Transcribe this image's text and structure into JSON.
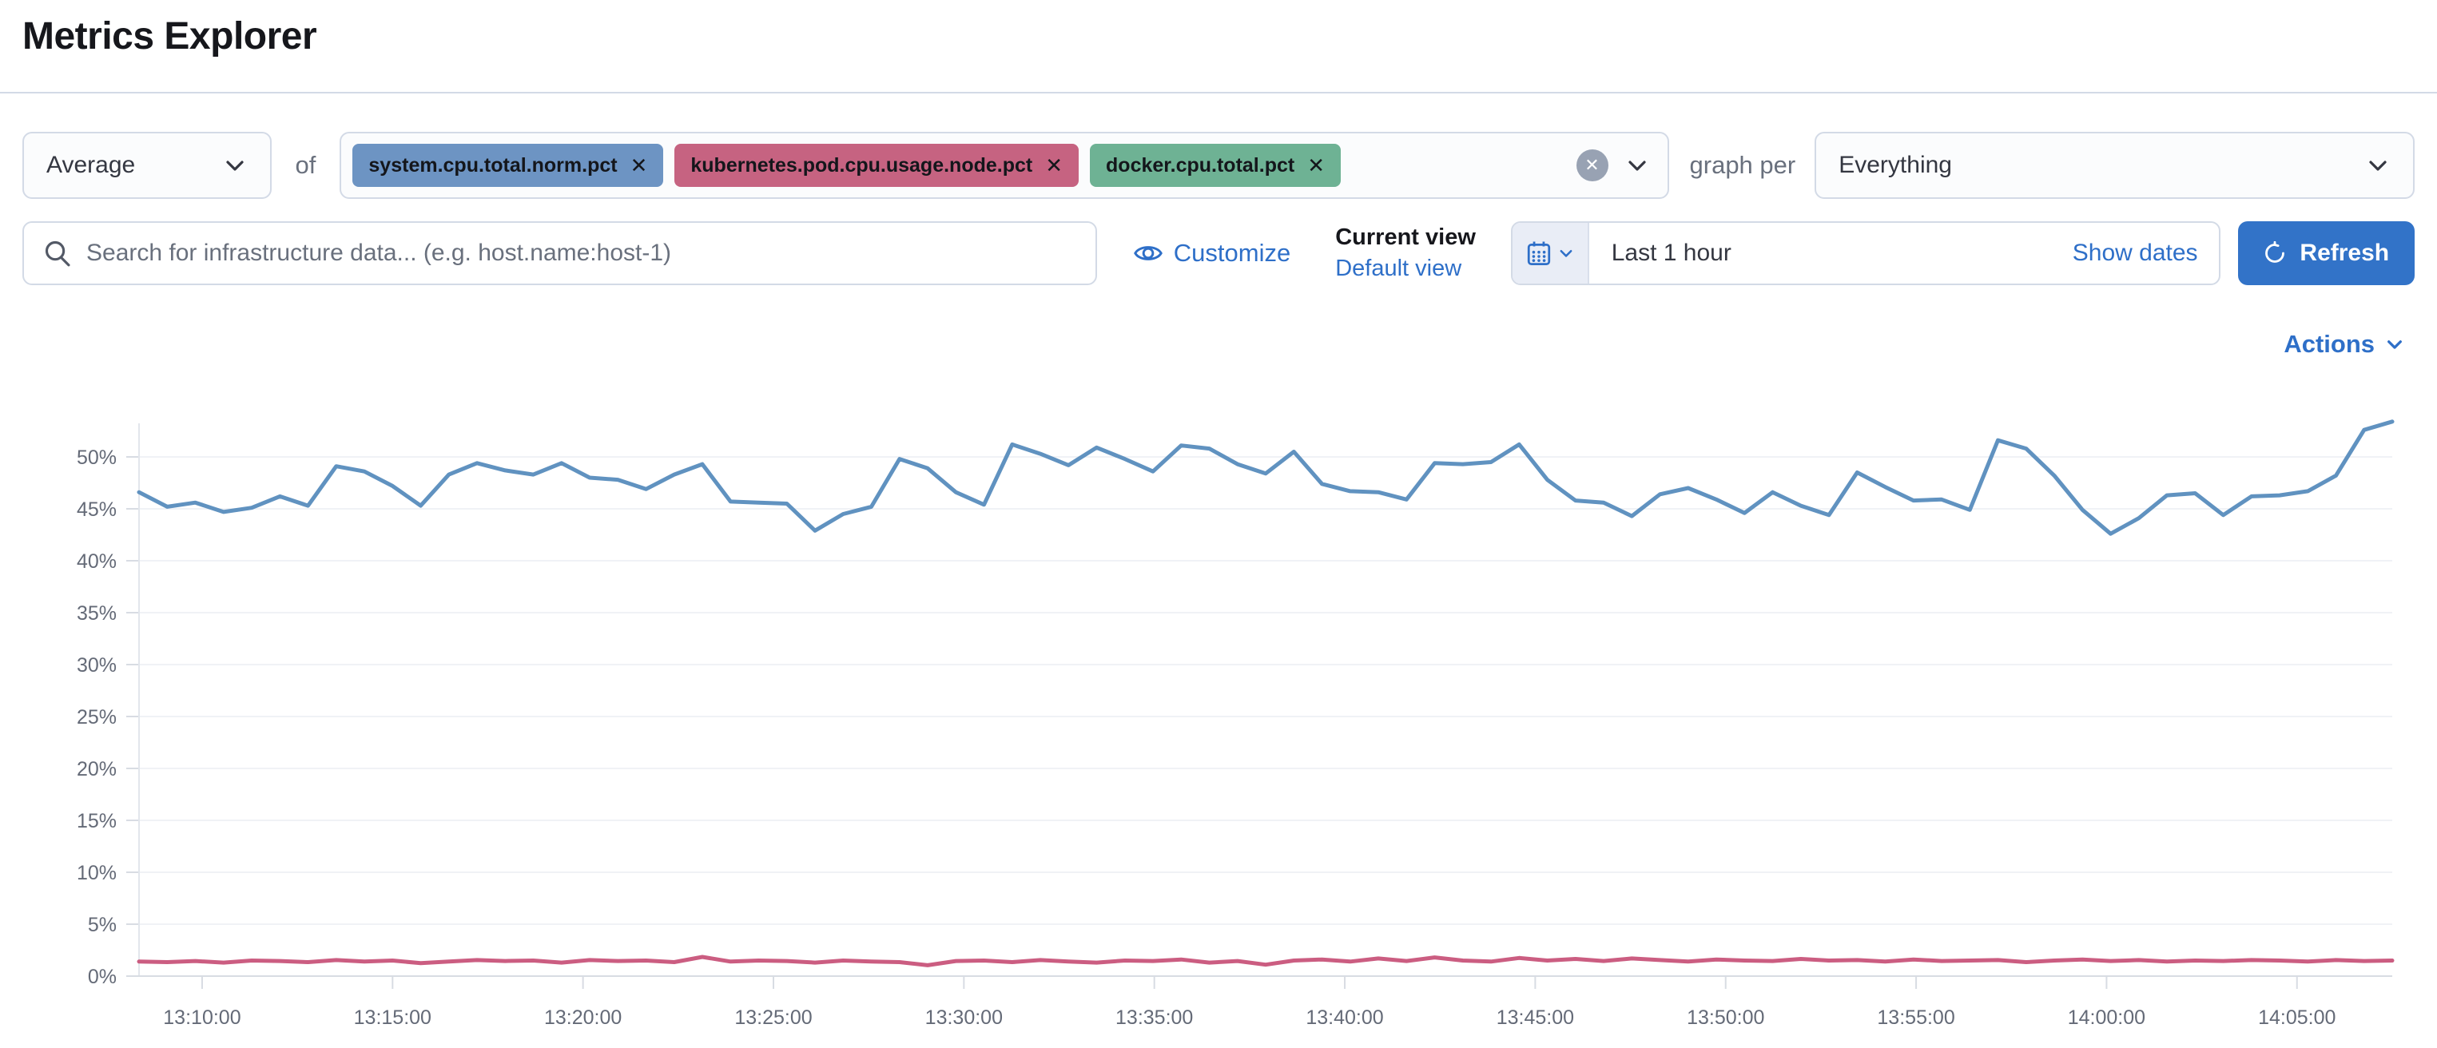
{
  "header": {
    "title": "Metrics Explorer"
  },
  "toolbar": {
    "aggregation": {
      "value": "Average"
    },
    "of_label": "of",
    "metrics": [
      {
        "label": "system.cpu.total.norm.pct",
        "color": "#6D94C3"
      },
      {
        "label": "kubernetes.pod.cpu.usage.node.pct",
        "color": "#C66381"
      },
      {
        "label": "docker.cpu.total.pct",
        "color": "#6EB294"
      }
    ],
    "remove_icon": "✕",
    "clear_icon": "✕",
    "graph_per_label": "graph per",
    "group_by": {
      "value": "Everything"
    }
  },
  "searchbar": {
    "placeholder": "Search for infrastructure data... (e.g. host.name:host-1)"
  },
  "customize": {
    "label": "Customize"
  },
  "view_switcher": {
    "current": "Current view",
    "default_link": "Default view"
  },
  "datepicker": {
    "value": "Last 1 hour",
    "show_dates_label": "Show dates"
  },
  "refresh": {
    "label": "Refresh"
  },
  "actions": {
    "label": "Actions"
  },
  "colors": {
    "accent_link": "#2e6fc8",
    "primary_button": "#3273c8",
    "series_blue": "#6092C0",
    "series_pink": "#CB5D81"
  },
  "chart_data": {
    "type": "line",
    "title": "",
    "xlabel": "",
    "ylabel": "",
    "ylim": [
      0,
      54
    ],
    "grid": true,
    "legend_position": "none",
    "yticks": [
      0,
      5,
      10,
      15,
      20,
      25,
      30,
      35,
      40,
      45,
      50
    ],
    "ytick_suffix": "%",
    "x_tick_labels": [
      "13:10:00",
      "13:15:00",
      "13:20:00",
      "13:25:00",
      "13:30:00",
      "13:35:00",
      "13:40:00",
      "13:45:00",
      "13:50:00",
      "13:55:00",
      "14:00:00",
      "14:05:00"
    ],
    "series": [
      {
        "name": "system.cpu.total.norm.pct",
        "color": "#6092C0",
        "values": [
          46.6,
          45.2,
          45.6,
          44.7,
          45.1,
          46.2,
          45.3,
          49.1,
          48.6,
          47.2,
          45.3,
          48.3,
          49.4,
          48.7,
          48.3,
          49.4,
          48.0,
          47.8,
          46.9,
          48.3,
          49.3,
          45.7,
          45.6,
          45.5,
          42.9,
          44.5,
          45.2,
          49.8,
          48.9,
          46.6,
          45.4,
          51.2,
          50.3,
          49.2,
          50.9,
          49.8,
          48.6,
          51.1,
          50.8,
          49.3,
          48.4,
          50.5,
          47.4,
          46.7,
          46.6,
          45.9,
          49.4,
          49.3,
          49.5,
          51.2,
          47.8,
          45.8,
          45.6,
          44.3,
          46.4,
          47.0,
          45.9,
          44.6,
          46.6,
          45.3,
          44.4,
          48.5,
          47.1,
          45.8,
          45.9,
          44.9,
          51.6,
          50.8,
          48.2,
          44.9,
          42.6,
          44.1,
          46.3,
          46.5,
          44.4,
          46.2,
          46.3,
          46.7,
          48.2,
          52.6,
          53.4
        ]
      },
      {
        "name": "kubernetes.pod.cpu.usage.node.pct",
        "color": "#CB5D81",
        "values": [
          1.4,
          1.35,
          1.45,
          1.3,
          1.5,
          1.45,
          1.35,
          1.55,
          1.4,
          1.5,
          1.25,
          1.4,
          1.55,
          1.45,
          1.5,
          1.3,
          1.55,
          1.45,
          1.5,
          1.35,
          1.85,
          1.4,
          1.5,
          1.45,
          1.3,
          1.5,
          1.4,
          1.35,
          1.05,
          1.45,
          1.5,
          1.35,
          1.55,
          1.4,
          1.3,
          1.5,
          1.45,
          1.6,
          1.3,
          1.45,
          1.1,
          1.5,
          1.6,
          1.4,
          1.7,
          1.45,
          1.8,
          1.5,
          1.4,
          1.75,
          1.5,
          1.65,
          1.45,
          1.7,
          1.55,
          1.4,
          1.6,
          1.5,
          1.45,
          1.65,
          1.5,
          1.55,
          1.4,
          1.6,
          1.45,
          1.5,
          1.55,
          1.35,
          1.5,
          1.6,
          1.45,
          1.55,
          1.4,
          1.5,
          1.45,
          1.55,
          1.5,
          1.4,
          1.55,
          1.45,
          1.5
        ]
      }
    ]
  }
}
